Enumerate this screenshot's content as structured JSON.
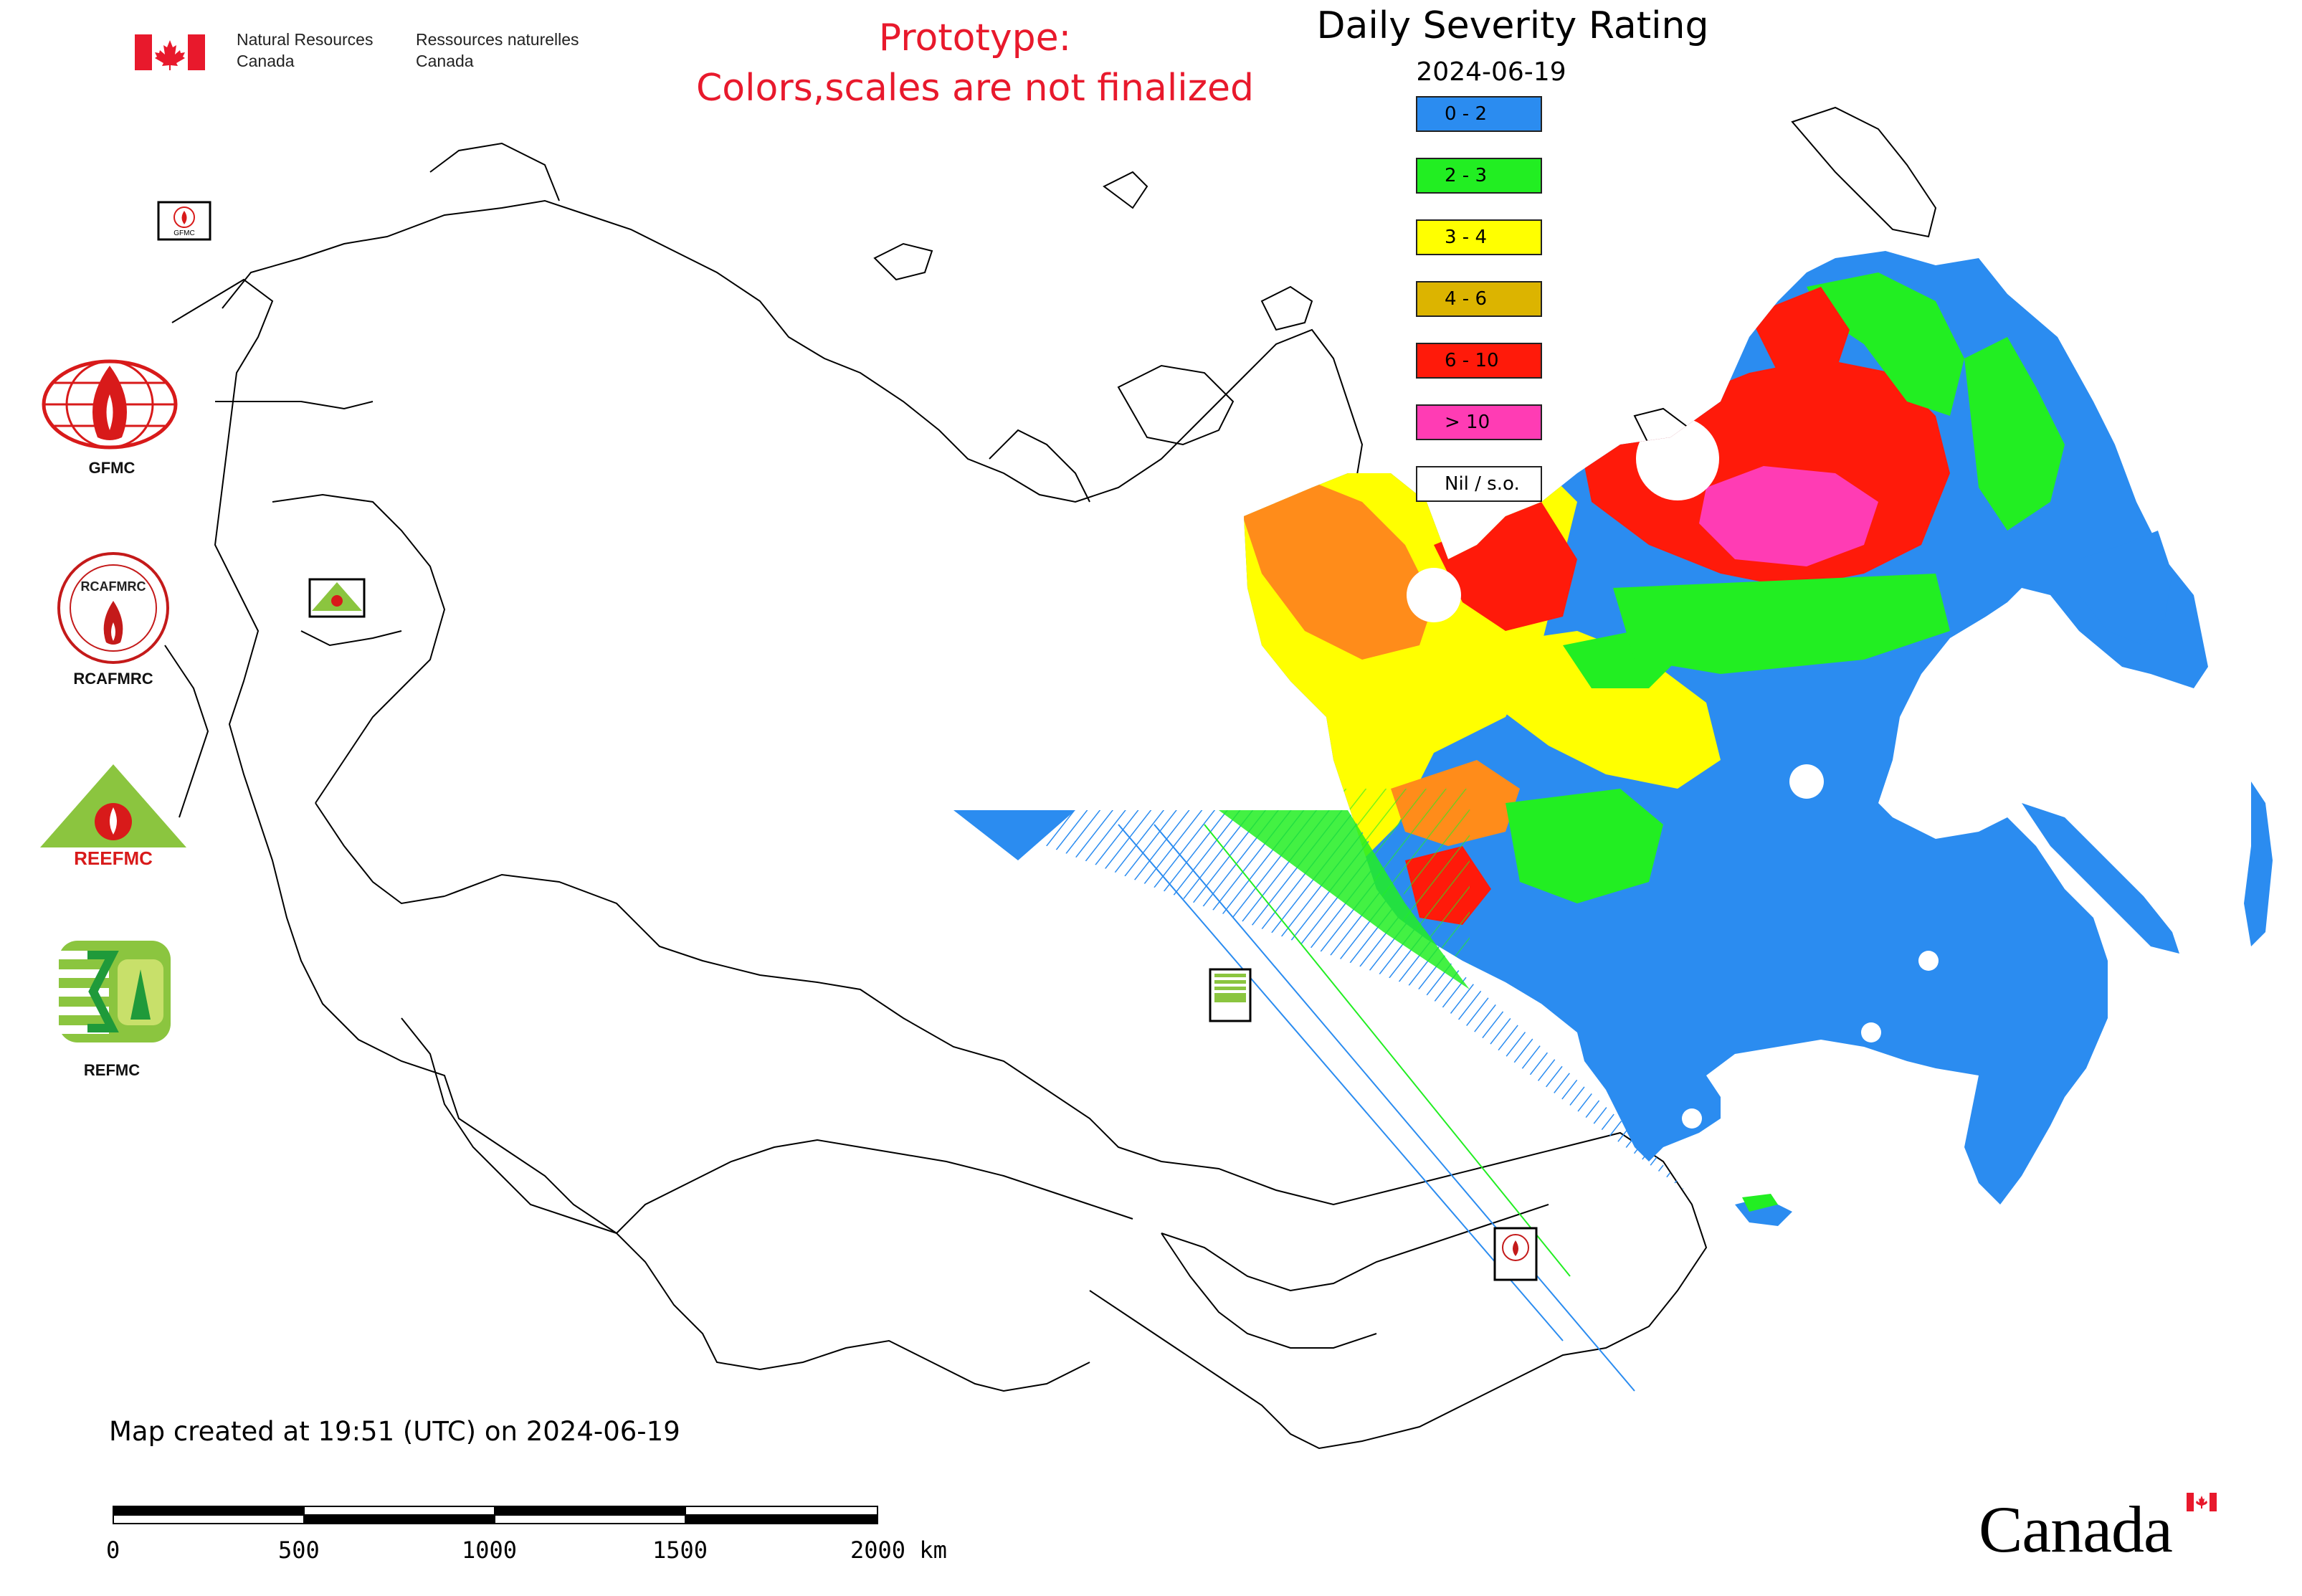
{
  "header": {
    "department_en_line1": "Natural Resources",
    "department_en_line2": "Canada",
    "department_fr_line1": "Ressources naturelles",
    "department_fr_line2": "Canada",
    "prototype_line1": "Prototype:",
    "prototype_line2": "Colors,scales are not finalized"
  },
  "map": {
    "title": "Daily Severity Rating",
    "date": "2024-06-19",
    "created_text": "Map created at 19:51 (UTC) on 2024-06-19"
  },
  "legend": [
    {
      "label": "0 - 2",
      "color": "#2b8cf0"
    },
    {
      "label": "2 - 3",
      "color": "#22ee22"
    },
    {
      "label": "3 - 4",
      "color": "#ffff00"
    },
    {
      "label": "4 - 6",
      "color": "#dcb400"
    },
    {
      "label": "6 - 10",
      "color": "#ff1a0a"
    },
    {
      "label": "> 10",
      "color": "#ff3cb4"
    },
    {
      "label": "Nil / s.o.",
      "color": "#ffffff"
    }
  ],
  "logos": {
    "gfmc": "GFMC",
    "rcafmrc": "RCAFMRC",
    "reefmc": "REEFMC",
    "refmc": "REFMC",
    "rcafmrc_badge_text": "RCAFMRC",
    "reefmc_badge_text": "REEFMC"
  },
  "scale": {
    "ticks": [
      "0",
      "500",
      "1000",
      "1500",
      "2000 km"
    ]
  },
  "wordmark": "Canada"
}
